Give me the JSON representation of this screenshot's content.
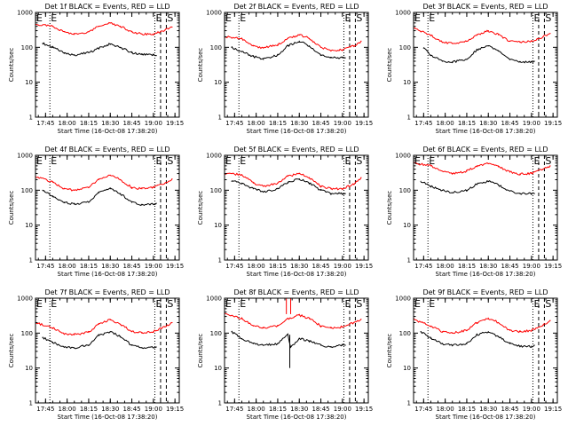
{
  "chart_data": {
    "type": "line",
    "xlabel": "Start Time (16-Oct-08 17:38:20)",
    "ylabel": "Counts/sec",
    "yscale": "log",
    "ylim": [
      1,
      1000
    ],
    "ytick_labels": [
      "1",
      "10",
      "100",
      "1000"
    ],
    "xtick_labels": [
      "17:45",
      "18:00",
      "18:15",
      "18:30",
      "18:45",
      "19:00",
      "19:15"
    ],
    "x_domain_min": [
      17,
      38
    ],
    "x_domain_max": [
      19,
      18
    ],
    "line_colors": {
      "events": "#000000",
      "lld": "#ff0000"
    },
    "markers": [
      {
        "label": "E",
        "time": [
          17,
          38
        ],
        "style": "dotted"
      },
      {
        "label": "E",
        "time": [
          17,
          48
        ],
        "style": "dotted"
      },
      {
        "label": "E",
        "time": [
          19,
          1
        ],
        "style": "dotted"
      },
      {
        "label": "",
        "time": [
          19,
          5
        ],
        "style": "dashed"
      },
      {
        "label": "S",
        "time": [
          19,
          9
        ],
        "style": "dashed"
      }
    ],
    "panels": [
      {
        "title": "Det 1f BLACK = Events, RED = LLD",
        "series": [
          {
            "name": "Events",
            "x": [
              "17:43",
              "17:50",
              "17:58",
              "18:05",
              "18:15",
              "18:22",
              "18:30",
              "18:37",
              "18:45",
              "18:52",
              "19:00",
              "19:02"
            ],
            "y": [
              130,
              100,
              70,
              60,
              70,
              95,
              125,
              100,
              70,
              62,
              60,
              58
            ]
          },
          {
            "name": "LLD",
            "x": [
              "17:38",
              "17:50",
              "17:58",
              "18:05",
              "18:15",
              "18:22",
              "18:30",
              "18:37",
              "18:45",
              "18:52",
              "19:00",
              "19:08",
              "19:13"
            ],
            "y": [
              450,
              400,
              280,
              235,
              280,
              400,
              500,
              400,
              280,
              240,
              240,
              310,
              380
            ]
          }
        ]
      },
      {
        "title": "Det 2f BLACK = Events, RED = LLD",
        "series": [
          {
            "name": "Events",
            "x": [
              "17:43",
              "17:50",
              "17:58",
              "18:05",
              "18:15",
              "18:22",
              "18:30",
              "18:37",
              "18:45",
              "18:52",
              "19:00",
              "19:02"
            ],
            "y": [
              100,
              75,
              55,
              45,
              60,
              110,
              150,
              110,
              60,
              50,
              50,
              50
            ]
          },
          {
            "name": "LLD",
            "x": [
              "17:38",
              "17:50",
              "17:58",
              "18:05",
              "18:15",
              "18:22",
              "18:30",
              "18:37",
              "18:45",
              "18:52",
              "19:00",
              "19:08",
              "19:13"
            ],
            "y": [
              200,
              180,
              110,
              95,
              120,
              180,
              230,
              180,
              100,
              80,
              85,
              110,
              150
            ]
          }
        ]
      },
      {
        "title": "Det 3f BLACK = Events, RED = LLD",
        "series": [
          {
            "name": "Events",
            "x": [
              "17:45",
              "17:50",
              "17:58",
              "18:05",
              "18:15",
              "18:22",
              "18:30",
              "18:37",
              "18:45",
              "18:52",
              "19:00",
              "19:02"
            ],
            "y": [
              95,
              60,
              40,
              38,
              45,
              85,
              110,
              80,
              45,
              38,
              38,
              40
            ]
          },
          {
            "name": "LLD",
            "x": [
              "17:38",
              "17:50",
              "17:58",
              "18:05",
              "18:15",
              "18:22",
              "18:30",
              "18:37",
              "18:45",
              "18:52",
              "19:00",
              "19:08",
              "19:13"
            ],
            "y": [
              350,
              220,
              140,
              130,
              150,
              230,
              300,
              230,
              150,
              140,
              150,
              200,
              250
            ]
          }
        ]
      },
      {
        "title": "Det 4f BLACK = Events, RED = LLD",
        "series": [
          {
            "name": "Events",
            "x": [
              "17:43",
              "17:50",
              "17:58",
              "18:05",
              "18:15",
              "18:22",
              "18:30",
              "18:37",
              "18:45",
              "18:52",
              "19:00",
              "19:02"
            ],
            "y": [
              100,
              65,
              45,
              40,
              45,
              85,
              110,
              80,
              45,
              38,
              40,
              42
            ]
          },
          {
            "name": "LLD",
            "x": [
              "17:38",
              "17:50",
              "17:58",
              "18:05",
              "18:15",
              "18:22",
              "18:30",
              "18:37",
              "18:45",
              "18:52",
              "19:00",
              "19:08",
              "19:13"
            ],
            "y": [
              250,
              170,
              110,
              100,
              120,
              200,
              270,
              200,
              120,
              110,
              120,
              160,
              210
            ]
          }
        ]
      },
      {
        "title": "Det 5f BLACK = Events, RED = LLD",
        "series": [
          {
            "name": "Events",
            "x": [
              "17:43",
              "17:50",
              "17:58",
              "18:05",
              "18:15",
              "18:22",
              "18:30",
              "18:37",
              "18:45",
              "18:52",
              "19:00",
              "19:02"
            ],
            "y": [
              180,
              160,
              110,
              90,
              110,
              170,
              210,
              160,
              100,
              80,
              80,
              80
            ]
          },
          {
            "name": "LLD",
            "x": [
              "17:38",
              "17:50",
              "17:58",
              "18:05",
              "18:15",
              "18:22",
              "18:30",
              "18:37",
              "18:45",
              "18:52",
              "19:00",
              "19:08",
              "19:13"
            ],
            "y": [
              300,
              280,
              160,
              130,
              160,
              250,
              300,
              230,
              130,
              110,
              110,
              150,
              230
            ]
          }
        ]
      },
      {
        "title": "Det 6f BLACK = Events, RED = LLD",
        "series": [
          {
            "name": "Events",
            "x": [
              "17:43",
              "17:50",
              "17:58",
              "18:05",
              "18:15",
              "18:22",
              "18:30",
              "18:37",
              "18:45",
              "18:52",
              "19:00",
              "19:02"
            ],
            "y": [
              180,
              130,
              100,
              85,
              100,
              150,
              180,
              140,
              95,
              80,
              80,
              80
            ]
          },
          {
            "name": "LLD",
            "x": [
              "17:38",
              "17:50",
              "17:58",
              "18:05",
              "18:15",
              "18:22",
              "18:30",
              "18:37",
              "18:45",
              "18:52",
              "19:00",
              "19:08",
              "19:13"
            ],
            "y": [
              600,
              500,
              350,
              300,
              350,
              500,
              580,
              470,
              330,
              290,
              300,
              400,
              500
            ]
          }
        ]
      },
      {
        "title": "Det 7f BLACK = Events, RED = LLD",
        "series": [
          {
            "name": "Events",
            "x": [
              "17:43",
              "17:50",
              "17:58",
              "18:05",
              "18:15",
              "18:22",
              "18:30",
              "18:37",
              "18:45",
              "18:52",
              "19:00",
              "19:02"
            ],
            "y": [
              75,
              55,
              40,
              38,
              45,
              85,
              110,
              80,
              45,
              38,
              38,
              40
            ]
          },
          {
            "name": "LLD",
            "x": [
              "17:38",
              "17:50",
              "17:58",
              "18:05",
              "18:15",
              "18:22",
              "18:30",
              "18:37",
              "18:45",
              "18:52",
              "19:00",
              "19:08",
              "19:13"
            ],
            "y": [
              200,
              140,
              95,
              90,
              105,
              180,
              240,
              180,
              110,
              100,
              110,
              150,
              200
            ]
          }
        ]
      },
      {
        "title": "Det 8f BLACK = Events, RED = LLD",
        "series": [
          {
            "name": "Events",
            "x": [
              "17:43",
              "17:50",
              "17:58",
              "18:05",
              "18:15",
              "18:22",
              "18:24",
              "18:30",
              "18:37",
              "18:45",
              "18:52",
              "19:00",
              "19:02"
            ],
            "y": [
              110,
              70,
              50,
              45,
              50,
              90,
              40,
              70,
              60,
              45,
              40,
              45,
              45
            ]
          },
          {
            "name": "LLD",
            "x": [
              "17:38",
              "17:50",
              "17:58",
              "18:05",
              "18:15",
              "18:22",
              "18:30",
              "18:37",
              "18:45",
              "18:52",
              "19:00",
              "19:08",
              "19:13"
            ],
            "y": [
              350,
              260,
              160,
              140,
              160,
              260,
              330,
              260,
              160,
              140,
              150,
              200,
              250
            ]
          }
        ]
      },
      {
        "title": "Det 9f BLACK = Events, RED = LLD",
        "series": [
          {
            "name": "Events",
            "x": [
              "17:43",
              "17:50",
              "17:58",
              "18:05",
              "18:15",
              "18:22",
              "18:30",
              "18:37",
              "18:45",
              "18:52",
              "19:00",
              "19:02"
            ],
            "y": [
              110,
              70,
              50,
              45,
              50,
              90,
              110,
              80,
              50,
              42,
              42,
              45
            ]
          },
          {
            "name": "LLD",
            "x": [
              "17:38",
              "17:50",
              "17:58",
              "18:05",
              "18:15",
              "18:22",
              "18:30",
              "18:37",
              "18:45",
              "18:52",
              "19:00",
              "19:08",
              "19:13"
            ],
            "y": [
              250,
              160,
              110,
              100,
              120,
              200,
              270,
              200,
              120,
              110,
              120,
              170,
              230
            ]
          }
        ]
      }
    ]
  }
}
